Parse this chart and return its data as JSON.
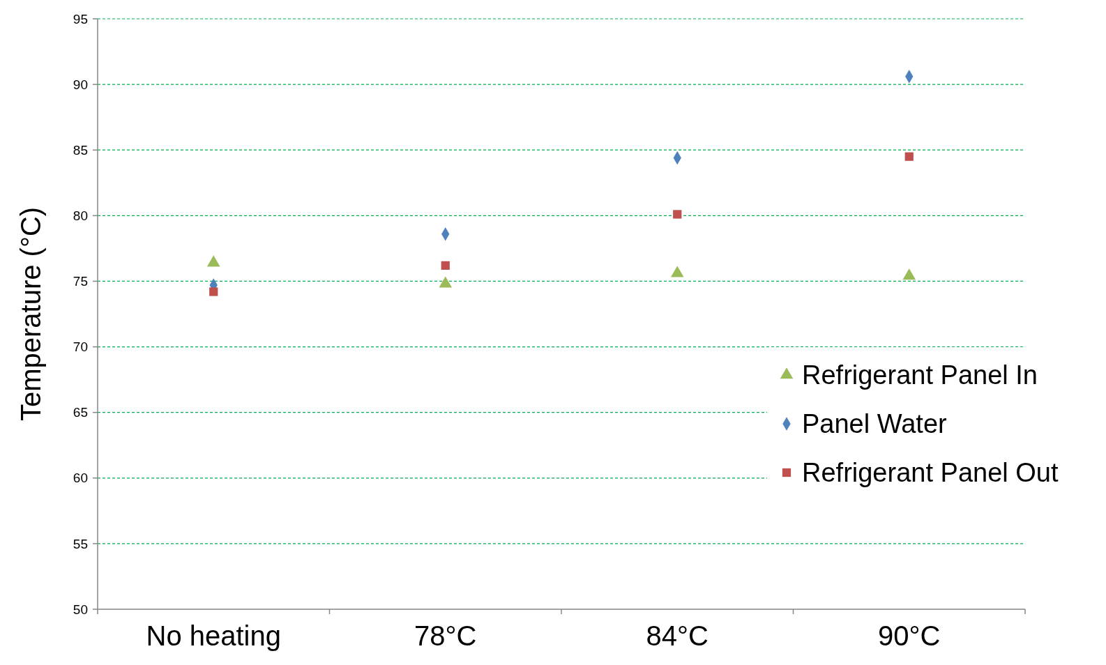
{
  "chart_data": {
    "type": "scatter",
    "ylabel": "Temperature (°C)",
    "categories": [
      "No heating",
      "78°C",
      "84°C",
      "90°C"
    ],
    "ylim": [
      50,
      95
    ],
    "yticks": [
      50,
      55,
      60,
      65,
      70,
      75,
      80,
      85,
      90,
      95
    ],
    "grid": "y",
    "legend": "right",
    "series": [
      {
        "name": "Refrigerant Panel In",
        "color": "#9bbb59",
        "marker": "triangle",
        "values": [
          76.4,
          74.8,
          75.6,
          75.4
        ]
      },
      {
        "name": "Panel Water",
        "color": "#4f81bd",
        "marker": "diamond",
        "values": [
          74.7,
          78.6,
          84.4,
          90.6
        ]
      },
      {
        "name": "Refrigerant Panel Out",
        "color": "#c0504d",
        "marker": "square",
        "values": [
          74.2,
          76.2,
          80.1,
          84.5
        ]
      }
    ]
  }
}
